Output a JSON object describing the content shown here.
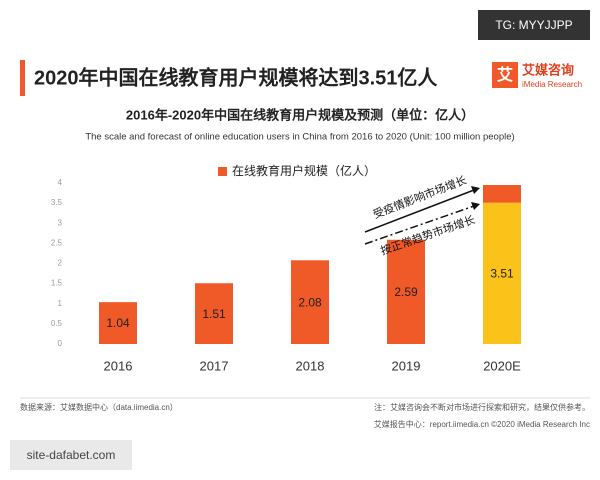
{
  "badge": "TG: MYYJJPP",
  "header": {
    "title": "2020年中国在线教育用户规模将达到3.51亿人",
    "logo_mark": "艾",
    "logo_name": "艾媒咨询",
    "logo_sub": "iMedia Research"
  },
  "chart_data": {
    "type": "bar",
    "title": "2016年-2020年中国在线教育用户规模及预测（单位：亿人）",
    "subtitle": "The scale and forecast of online education users in China from 2016 to 2020 (Unit: 100 million people)",
    "categories": [
      "2016",
      "2017",
      "2018",
      "2019",
      "2020E"
    ],
    "series": [
      {
        "name": "在线教育用户规模（亿人）",
        "color": "#f05a28",
        "colors": [
          "#f05a28",
          "#f05a28",
          "#f05a28",
          "#f05a28",
          "#fbc21a"
        ],
        "values": [
          1.04,
          1.51,
          2.08,
          2.59,
          3.51
        ]
      },
      {
        "color": "#f05a28",
        "values": [
          null,
          null,
          null,
          null,
          0.44
        ]
      }
    ],
    "ylim": [
      0,
      4
    ],
    "yticks": [
      0,
      0.5,
      1,
      1.5,
      2,
      2.5,
      3,
      3.5,
      4
    ],
    "annotations": [
      "受疫情影响市场增长",
      "按正常趋势市场增长"
    ]
  },
  "footer": {
    "source": "数据来源：艾媒数据中心（data.iimedia.cn）",
    "note": "注：艾媒咨询会不断对市场进行探索和研究，结果仅供参考。",
    "report": "艾媒报告中心：report.iimedia.cn  ©2020  iMedia Research  Inc"
  },
  "watermark": "site-dafabet.com"
}
